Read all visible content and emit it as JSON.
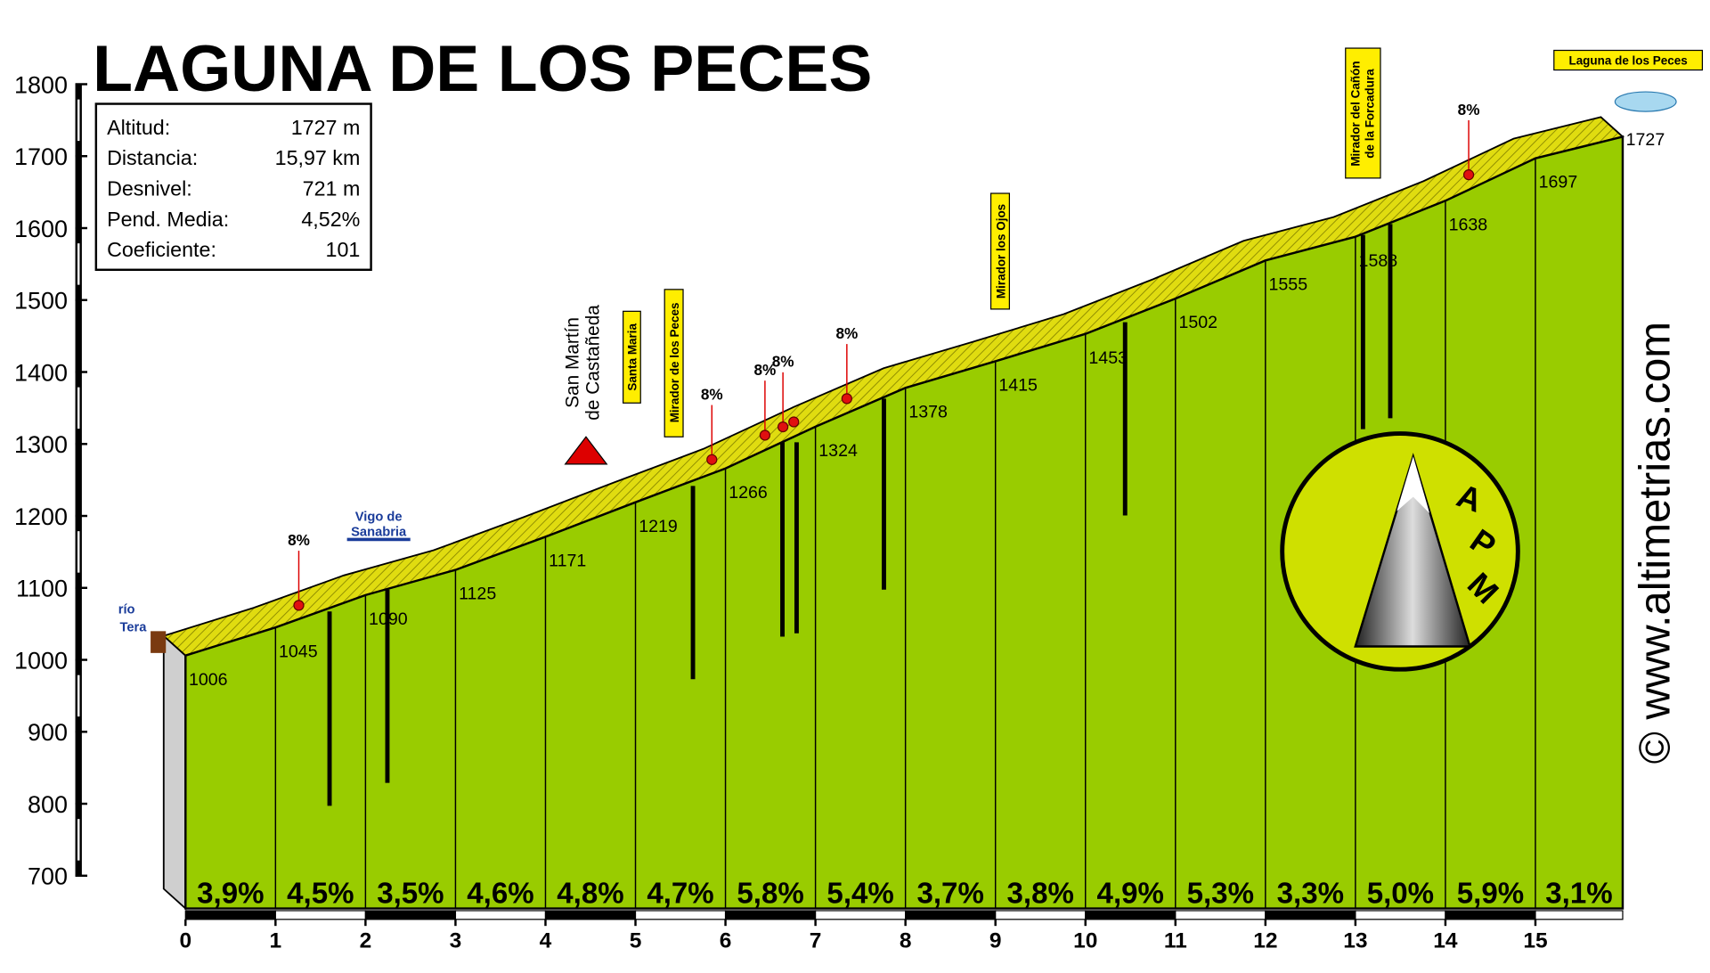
{
  "title": "LAGUNA DE LOS PECES",
  "info": [
    {
      "label": "Altitud:",
      "value": "1727 m"
    },
    {
      "label": "Distancia:",
      "value": "15,97 km"
    },
    {
      "label": "Desnivel:",
      "value": "721 m"
    },
    {
      "label": "Pend. Media:",
      "value": "4,52%"
    },
    {
      "label": "Coeficiente:",
      "value": "101"
    }
  ],
  "chart_data": {
    "type": "area",
    "x": [
      0,
      1,
      2,
      3,
      4,
      5,
      6,
      7,
      8,
      9,
      10,
      11,
      12,
      13,
      14,
      15,
      15.97
    ],
    "values": [
      1006,
      1045,
      1090,
      1125,
      1171,
      1219,
      1266,
      1324,
      1378,
      1415,
      1453,
      1502,
      1555,
      1588,
      1638,
      1697,
      1727
    ],
    "color": "#99cc00",
    "xlim": [
      0,
      15.97
    ],
    "xticks": [
      0,
      1,
      2,
      3,
      4,
      5,
      6,
      7,
      8,
      9,
      10,
      11,
      12,
      13,
      14,
      15
    ],
    "ylim": [
      700,
      1800
    ],
    "yticks": [
      700,
      800,
      900,
      1000,
      1100,
      1200,
      1300,
      1400,
      1500,
      1600,
      1700,
      1800
    ],
    "gradients": {
      "values": [
        3.9,
        4.5,
        3.5,
        4.6,
        4.8,
        4.7,
        5.8,
        5.4,
        3.7,
        3.8,
        4.9,
        5.3,
        3.3,
        5.0,
        5.9,
        3.1
      ],
      "value_labels": [
        "3,9%",
        "4,5%",
        "3,5%",
        "4,6%",
        "4,8%",
        "4,7%",
        "5,8%",
        "5,4%",
        "3,7%",
        "3,8%",
        "4,9%",
        "5,3%",
        "3,3%",
        "5,0%",
        "5,9%",
        "3,1%"
      ]
    },
    "steep_points": {
      "x": [
        1.38,
        5.97,
        6.56,
        6.76,
        6.88,
        7.47,
        14.38
      ],
      "labels": [
        "8%",
        "8%",
        "8%",
        "8%",
        null,
        "8%",
        "8%"
      ]
    }
  },
  "places": {
    "rio_tera": [
      "río",
      "Tera"
    ],
    "vigo": [
      "Vigo de",
      "Sanabria"
    ],
    "san_martin": [
      "San Martín",
      "de Castañeda"
    ],
    "santa_maria": "Santa Maria",
    "mirador_peces": "Mirador de los Peces",
    "mirador_ojos": "Mirador los Ojos",
    "mirador_canon": [
      "Mirador del Cañón",
      "de la Forcadura"
    ],
    "laguna": "Laguna de los Peces"
  },
  "logo": [
    "A",
    "P",
    "M"
  ],
  "website": "© www.altimetrias.com"
}
